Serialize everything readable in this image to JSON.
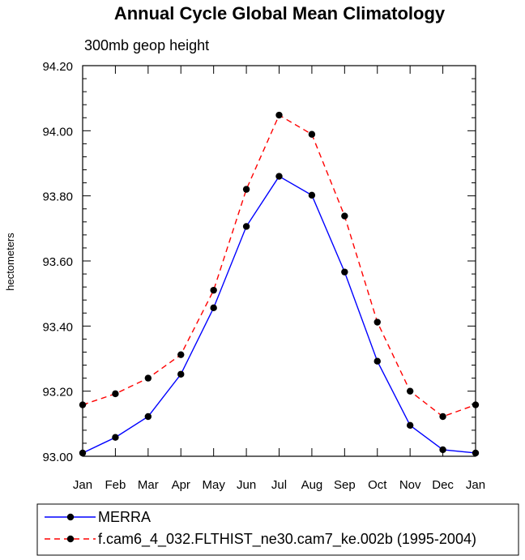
{
  "chart_data": {
    "type": "line",
    "title": "Annual Cycle Global Mean Climatology",
    "subtitle": "300mb geop height",
    "ylabel": "hectometers",
    "xlabel": "",
    "categories": [
      "Jan",
      "Feb",
      "Mar",
      "Apr",
      "May",
      "Jun",
      "Jul",
      "Aug",
      "Sep",
      "Oct",
      "Nov",
      "Dec",
      "Jan"
    ],
    "ylim": [
      93.0,
      94.2
    ],
    "yticks": [
      "93.00",
      "93.20",
      "93.40",
      "93.60",
      "93.80",
      "94.00",
      "94.20"
    ],
    "grid": false,
    "legend_position": "bottom",
    "series": [
      {
        "name": "MERRA",
        "color": "#0000ff",
        "dash": "solid",
        "values": [
          93.01,
          93.058,
          93.122,
          93.252,
          93.456,
          93.706,
          93.86,
          93.802,
          93.566,
          93.292,
          93.095,
          93.02,
          93.01
        ]
      },
      {
        "name": "f.cam6_4_032.FLTHIST_ne30.cam7_ke.002b (1995-2004)",
        "color": "#ff0000",
        "dash": "dashed",
        "values": [
          93.158,
          93.192,
          93.24,
          93.312,
          93.51,
          93.82,
          94.048,
          93.989,
          93.738,
          93.412,
          93.2,
          93.122,
          93.158
        ]
      }
    ]
  }
}
